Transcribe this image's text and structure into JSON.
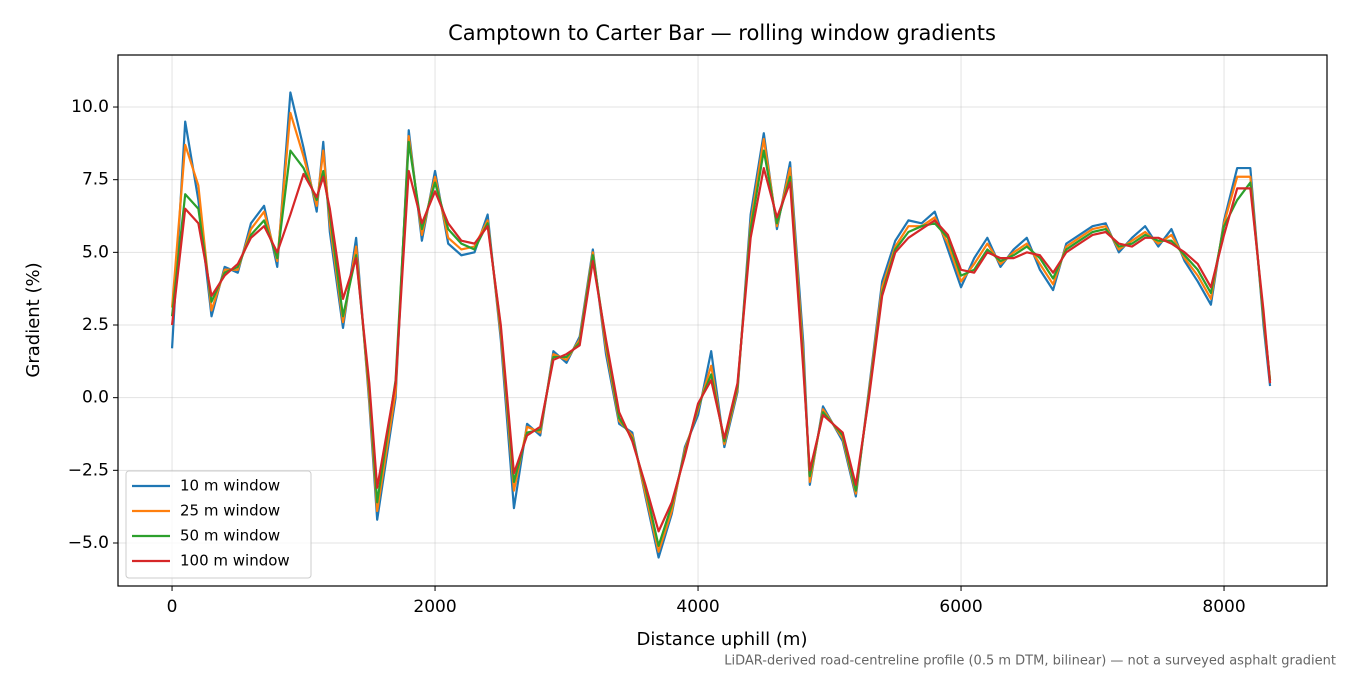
{
  "chart_data": {
    "type": "line",
    "title": "Camptown to Carter Bar — rolling window gradients",
    "xlabel": "Distance uphill (m)",
    "ylabel": "Gradient (%)",
    "footnote": "LiDAR-derived road-centreline profile (0.5 m DTM, bilinear) — not a surveyed asphalt gradient",
    "x": [
      0,
      100,
      200,
      300,
      400,
      500,
      600,
      700,
      800,
      900,
      1000,
      1100,
      1150,
      1200,
      1300,
      1400,
      1500,
      1560,
      1700,
      1800,
      1900,
      2000,
      2100,
      2200,
      2300,
      2400,
      2500,
      2600,
      2700,
      2800,
      2900,
      3000,
      3100,
      3200,
      3300,
      3400,
      3500,
      3600,
      3700,
      3800,
      3900,
      4000,
      4100,
      4200,
      4300,
      4400,
      4500,
      4600,
      4700,
      4800,
      4850,
      4950,
      5100,
      5200,
      5300,
      5400,
      5500,
      5600,
      5700,
      5800,
      5900,
      6000,
      6100,
      6200,
      6300,
      6400,
      6500,
      6600,
      6700,
      6800,
      6900,
      7000,
      7100,
      7200,
      7300,
      7400,
      7500,
      7600,
      7700,
      7800,
      7900,
      8000,
      8100,
      8200,
      8300,
      8350
    ],
    "series": [
      {
        "name": "10 m window",
        "color": "#1f77b4",
        "values": [
          1.7,
          9.5,
          6.8,
          2.8,
          4.5,
          4.3,
          6.0,
          6.6,
          4.5,
          10.5,
          8.6,
          6.4,
          8.8,
          5.7,
          2.4,
          5.5,
          -0.2,
          -4.2,
          0.0,
          9.2,
          5.4,
          7.8,
          5.3,
          4.9,
          5.0,
          6.3,
          2.0,
          -3.8,
          -0.9,
          -1.3,
          1.6,
          1.2,
          2.1,
          5.1,
          1.5,
          -0.9,
          -1.2,
          -3.4,
          -5.5,
          -4.0,
          -1.7,
          -0.6,
          1.6,
          -1.7,
          0.2,
          6.3,
          9.1,
          5.8,
          8.1,
          1.9,
          -3.0,
          -0.3,
          -1.5,
          -3.4,
          0.3,
          4.0,
          5.4,
          6.1,
          6.0,
          6.4,
          5.1,
          3.8,
          4.8,
          5.5,
          4.5,
          5.1,
          5.5,
          4.4,
          3.7,
          5.3,
          5.6,
          5.9,
          6.0,
          5.0,
          5.5,
          5.9,
          5.2,
          5.8,
          4.7,
          4.0,
          3.2,
          6.1,
          7.9,
          7.9,
          2.5,
          0.4
        ]
      },
      {
        "name": "25 m window",
        "color": "#ff7f0e",
        "values": [
          3.1,
          8.7,
          7.3,
          3.0,
          4.4,
          4.4,
          5.8,
          6.4,
          4.7,
          9.8,
          8.3,
          6.6,
          8.5,
          6.0,
          2.6,
          5.2,
          0.0,
          -3.9,
          0.2,
          9.0,
          5.6,
          7.6,
          5.5,
          5.1,
          5.2,
          6.1,
          2.2,
          -3.2,
          -1.0,
          -1.2,
          1.5,
          1.3,
          2.0,
          5.0,
          1.7,
          -0.8,
          -1.3,
          -3.3,
          -5.3,
          -3.9,
          -1.8,
          -0.4,
          1.1,
          -1.6,
          0.3,
          6.0,
          8.9,
          5.9,
          7.9,
          1.5,
          -2.9,
          -0.4,
          -1.4,
          -3.3,
          0.2,
          3.8,
          5.2,
          5.9,
          5.9,
          6.2,
          5.3,
          4.0,
          4.6,
          5.3,
          4.6,
          5.0,
          5.3,
          4.6,
          3.9,
          5.2,
          5.5,
          5.8,
          5.9,
          5.1,
          5.4,
          5.7,
          5.3,
          5.6,
          4.8,
          4.2,
          3.4,
          6.0,
          7.6,
          7.6,
          2.7,
          0.6
        ]
      },
      {
        "name": "50 m window",
        "color": "#2ca02c",
        "values": [
          2.8,
          7.0,
          6.5,
          3.3,
          4.3,
          4.5,
          5.6,
          6.1,
          4.8,
          8.5,
          7.9,
          6.8,
          7.8,
          6.3,
          2.8,
          4.9,
          0.3,
          -3.6,
          0.6,
          8.8,
          5.8,
          7.4,
          5.8,
          5.3,
          5.1,
          6.0,
          2.4,
          -2.9,
          -1.2,
          -1.1,
          1.4,
          1.4,
          1.9,
          4.9,
          1.9,
          -0.7,
          -1.4,
          -3.1,
          -5.1,
          -3.7,
          -1.9,
          -0.3,
          0.8,
          -1.5,
          0.4,
          5.8,
          8.5,
          6.0,
          7.6,
          1.2,
          -2.7,
          -0.5,
          -1.3,
          -3.2,
          0.1,
          3.6,
          5.1,
          5.7,
          5.9,
          6.0,
          5.5,
          4.2,
          4.4,
          5.1,
          4.7,
          4.9,
          5.2,
          4.8,
          4.1,
          5.1,
          5.4,
          5.7,
          5.8,
          5.2,
          5.3,
          5.6,
          5.4,
          5.4,
          4.9,
          4.4,
          3.6,
          5.9,
          6.8,
          7.4,
          2.8,
          0.6
        ]
      },
      {
        "name": "100 m window",
        "color": "#d62728",
        "values": [
          2.5,
          6.5,
          6.0,
          3.5,
          4.2,
          4.6,
          5.5,
          5.9,
          5.0,
          6.3,
          7.7,
          6.9,
          7.6,
          6.5,
          3.4,
          4.8,
          0.5,
          -3.1,
          0.5,
          7.8,
          6.0,
          7.1,
          6.0,
          5.4,
          5.3,
          5.9,
          2.5,
          -2.6,
          -1.3,
          -1.0,
          1.3,
          1.5,
          1.8,
          4.7,
          2.0,
          -0.5,
          -1.5,
          -3.0,
          -4.6,
          -3.6,
          -2.0,
          -0.2,
          0.6,
          -1.4,
          0.5,
          5.5,
          7.9,
          6.2,
          7.4,
          1.0,
          -2.5,
          -0.6,
          -1.2,
          -3.0,
          0.0,
          3.5,
          5.0,
          5.5,
          5.8,
          6.1,
          5.6,
          4.4,
          4.3,
          5.0,
          4.8,
          4.8,
          5.0,
          4.9,
          4.3,
          5.0,
          5.3,
          5.6,
          5.7,
          5.3,
          5.2,
          5.5,
          5.5,
          5.3,
          5.0,
          4.6,
          3.8,
          5.6,
          7.2,
          7.2,
          3.0,
          0.5
        ]
      }
    ],
    "xlim": [
      -411,
      8783
    ],
    "ylim": [
      -6.48,
      11.79
    ],
    "xticks": [
      0,
      2000,
      4000,
      6000,
      8000
    ],
    "yticks": [
      {
        "value": 10,
        "label": "10.0"
      },
      {
        "value": 7.5,
        "label": "7.5"
      },
      {
        "value": 5,
        "label": "5.0"
      },
      {
        "value": 2.5,
        "label": "2.5"
      },
      {
        "value": 0,
        "label": "0.0"
      },
      {
        "value": -2.5,
        "label": "−2.5"
      },
      {
        "value": -5,
        "label": "−5.0"
      }
    ],
    "grid": true,
    "legend": "lower left"
  }
}
